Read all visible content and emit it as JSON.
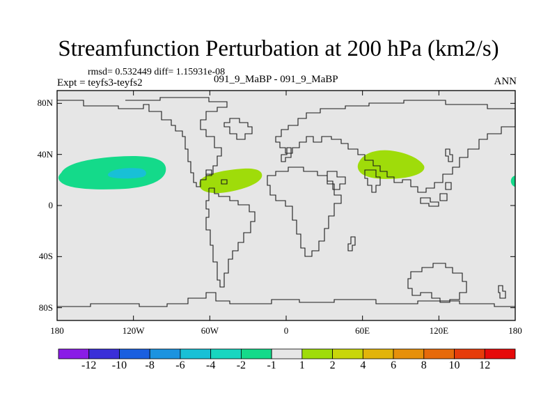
{
  "title": "Streamfunction Perturbation at 200 hPa (km2/s)",
  "stats_line": "rmsd= 0.532449 diff= 1.15931e-08",
  "experiment": "Expt = teyfs3-teyfs2",
  "comparison": "091_9_MaBP - 091_9_MaBP",
  "season": "ANN",
  "lat_ticks": [
    "80N",
    "40N",
    "0",
    "40S",
    "80S"
  ],
  "lon_ticks": [
    "180",
    "120W",
    "60W",
    "0",
    "60E",
    "120E",
    "180"
  ],
  "colorbar": {
    "labels": [
      "-12",
      "-10",
      "-8",
      "-6",
      "-4",
      "-2",
      "-1",
      "1",
      "2",
      "4",
      "6",
      "8",
      "10",
      "12"
    ],
    "colors": [
      "#8a1ce6",
      "#3a2fd8",
      "#1a5fe0",
      "#1c93e0",
      "#18c0d6",
      "#18d6c0",
      "#14da8a",
      "#e6e6e6",
      "#9fdc0a",
      "#c8d60a",
      "#e2b40a",
      "#e6900a",
      "#e66a0a",
      "#e63c0a",
      "#e60a0a"
    ]
  },
  "chart_data": {
    "type": "contour_map",
    "projection": "cylindrical equidistant",
    "lon_range": [
      -180,
      180
    ],
    "lat_range": [
      -90,
      90
    ],
    "levels": [
      -12,
      -10,
      -8,
      -6,
      -4,
      -2,
      -1,
      1,
      2,
      4,
      6,
      8,
      10,
      12
    ],
    "anomalies": [
      {
        "name": "north-pacific-negative",
        "sign": "negative",
        "center_lon": -150,
        "center_lat": 26,
        "level_range": "-2 to -1"
      },
      {
        "name": "north-pacific-core",
        "sign": "negative",
        "center_lon": -140,
        "center_lat": 26,
        "level_range": "-4 to -2"
      },
      {
        "name": "north-atlantic-positive",
        "sign": "positive",
        "center_lon": -44,
        "center_lat": 20,
        "level_range": "1 to 2"
      },
      {
        "name": "asia-positive",
        "sign": "positive",
        "center_lon": 82,
        "center_lat": 30,
        "level_range": "1 to 2"
      },
      {
        "name": "east-edge-negative",
        "sign": "negative",
        "center_lon": 180,
        "center_lat": 19,
        "level_range": "-2 to -1"
      }
    ]
  }
}
